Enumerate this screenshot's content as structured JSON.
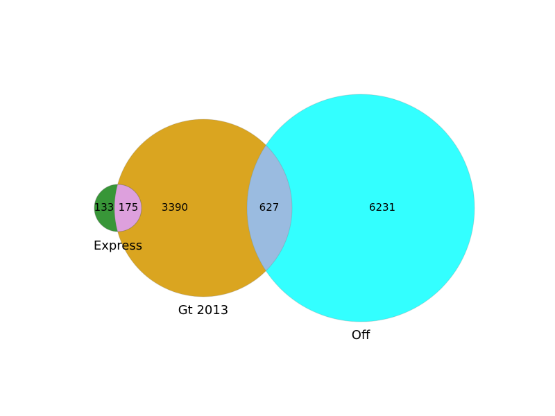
{
  "sets": [
    {
      "key": "express",
      "label": "Express",
      "color": "#228B22"
    },
    {
      "key": "gt2013",
      "label": "Gt 2013",
      "color": "#DAA520"
    },
    {
      "key": "off",
      "label": "Off",
      "color": "#00FFFF"
    }
  ],
  "regions": {
    "express_only": "133",
    "express_gt2013": "175",
    "gt2013_only": "3390",
    "gt2013_off": "627",
    "off_only": "6231"
  },
  "overlap_colors": {
    "express_gt2013": "#DDA0DD",
    "gt2013_off": "#9ABBE0"
  }
}
